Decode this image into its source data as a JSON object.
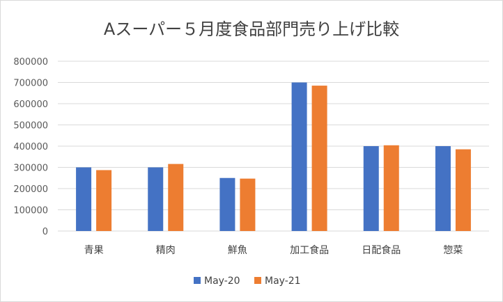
{
  "chart_data": {
    "type": "bar",
    "title": "Aスーパー５月度食品部門売り上げ比較",
    "categories": [
      "青果",
      "精肉",
      "鮮魚",
      "加工食品",
      "日配食品",
      "惣菜"
    ],
    "series": [
      {
        "name": "May-20",
        "color": "#4472C4",
        "values": [
          300000,
          300000,
          250000,
          700000,
          400000,
          400000
        ]
      },
      {
        "name": "May-21",
        "color": "#ED7D31",
        "values": [
          287000,
          316000,
          247000,
          685000,
          404000,
          385000
        ]
      }
    ],
    "ylim": [
      0,
      800000
    ],
    "yticks": [
      "0",
      "100000",
      "200000",
      "300000",
      "400000",
      "500000",
      "600000",
      "700000",
      "800000"
    ],
    "grid": true,
    "legend_position": "bottom"
  }
}
